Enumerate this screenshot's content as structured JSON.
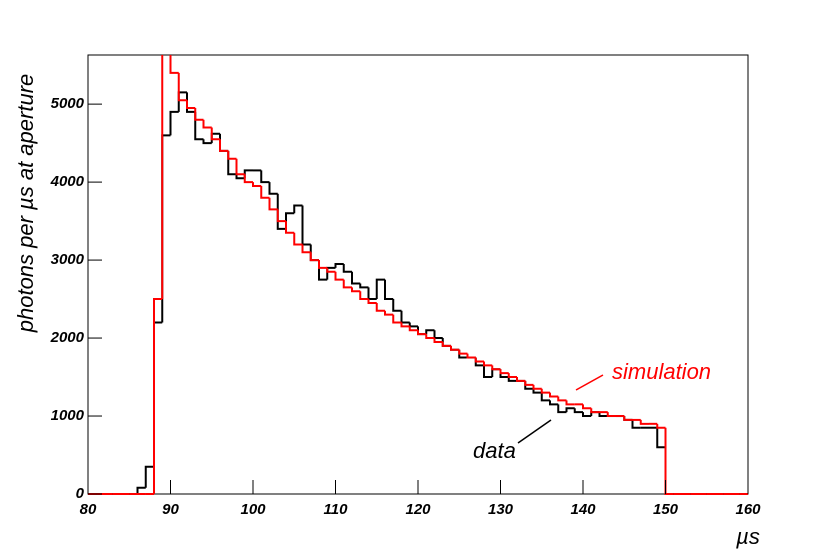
{
  "chart_data": {
    "type": "histogram",
    "ylabel": "photons per µs at aperture",
    "xlabel": "µs",
    "bins": [
      80,
      81,
      82,
      83,
      84,
      85,
      86,
      87,
      88,
      89,
      90,
      91,
      92,
      93,
      94,
      95,
      96,
      97,
      98,
      99,
      100,
      101,
      102,
      103,
      104,
      105,
      106,
      107,
      108,
      109,
      110,
      111,
      112,
      113,
      114,
      115,
      116,
      117,
      118,
      119,
      120,
      121,
      122,
      123,
      124,
      125,
      126,
      127,
      128,
      129,
      130,
      131,
      132,
      133,
      134,
      135,
      136,
      137,
      138,
      139,
      140,
      141,
      142,
      143,
      144,
      145,
      146,
      147,
      148,
      149,
      150,
      151,
      152,
      153,
      154,
      155,
      156,
      157,
      158,
      159,
      160
    ],
    "series": [
      {
        "name": "data",
        "color": "#000000",
        "values": [
          0,
          0,
          0,
          0,
          0,
          0,
          80,
          350,
          2200,
          4600,
          4900,
          5150,
          4900,
          4550,
          4500,
          4620,
          4400,
          4100,
          4050,
          4150,
          4150,
          4000,
          3850,
          3400,
          3600,
          3700,
          3200,
          3000,
          2750,
          2900,
          2950,
          2850,
          2700,
          2650,
          2500,
          2750,
          2500,
          2350,
          2200,
          2150,
          2050,
          2100,
          2000,
          1900,
          1850,
          1750,
          1750,
          1650,
          1500,
          1600,
          1500,
          1450,
          1450,
          1350,
          1300,
          1200,
          1150,
          1050,
          1100,
          1050,
          1000,
          1050,
          1000,
          1000,
          1000,
          950,
          850,
          850,
          850,
          600,
          0,
          0,
          0,
          0,
          0,
          0,
          0,
          0,
          0,
          0
        ]
      },
      {
        "name": "simulation",
        "color": "#ff0000",
        "values": [
          0,
          0,
          0,
          0,
          0,
          0,
          0,
          0,
          2500,
          5700,
          5400,
          5050,
          4950,
          4800,
          4700,
          4550,
          4400,
          4300,
          4100,
          4000,
          3950,
          3800,
          3650,
          3500,
          3350,
          3200,
          3100,
          3000,
          2900,
          2850,
          2750,
          2650,
          2600,
          2500,
          2450,
          2350,
          2300,
          2200,
          2150,
          2100,
          2050,
          2000,
          1950,
          1900,
          1850,
          1800,
          1750,
          1700,
          1650,
          1600,
          1550,
          1500,
          1450,
          1400,
          1350,
          1300,
          1250,
          1200,
          1150,
          1150,
          1100,
          1050,
          1050,
          1000,
          1000,
          950,
          950,
          900,
          900,
          850,
          0,
          0,
          0,
          0,
          0,
          0,
          0,
          0,
          0,
          0
        ]
      }
    ],
    "xlim": [
      80,
      160
    ],
    "ylim": [
      0,
      5630
    ],
    "xticks": [
      80,
      90,
      100,
      110,
      120,
      130,
      140,
      150,
      160
    ],
    "yticks": [
      0,
      1000,
      2000,
      3000,
      4000,
      5000
    ]
  }
}
